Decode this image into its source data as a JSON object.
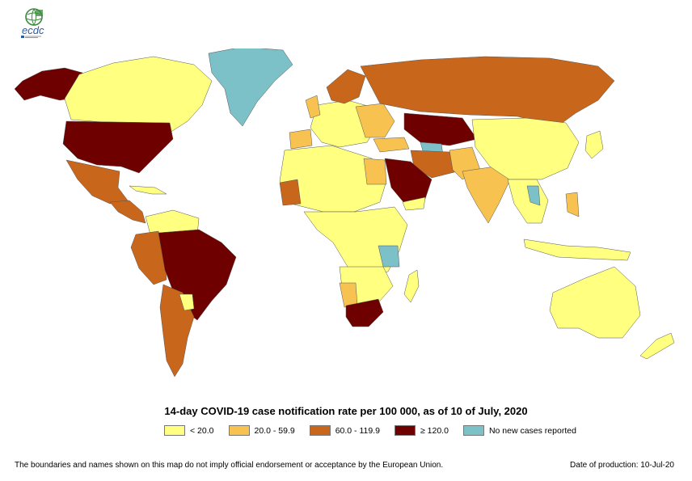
{
  "logo": {
    "text": "ecdc",
    "icon": "globe-icon"
  },
  "title": "14-day COVID-19 case notification rate per 100 000, as of 10 of July, 2020",
  "legend": [
    {
      "label": "< 20.0",
      "color": "#ffff80"
    },
    {
      "label": "20.0 - 59.9",
      "color": "#f8c251"
    },
    {
      "label": "60.0 - 119.9",
      "color": "#c8661c"
    },
    {
      "label": "≥ 120.0",
      "color": "#6e0000"
    },
    {
      "label": "No new cases reported",
      "color": "#7cc0c8"
    }
  ],
  "disclaimer": "The boundaries and names shown on this map do not imply official endorsement or acceptance by the European Union.",
  "production_date": "Date of production: 10-Jul-20"
}
